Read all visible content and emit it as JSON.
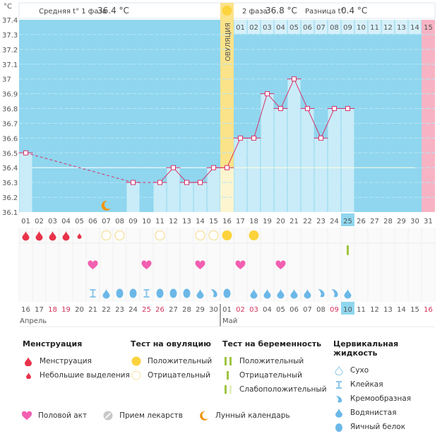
{
  "header": {
    "unit": "°C",
    "phase1_label": "Средняя t° 1 фаза",
    "phase1_value": "36.4 °C",
    "phase2_label": "2 фаза",
    "phase2_value": "36.8 °C",
    "diff_label": "Разница t°",
    "diff_value": "0.4 °C",
    "ovulation_label": "ОВУЛЯЦИЯ"
  },
  "chart_data": {
    "type": "line",
    "title": "",
    "ylabel": "°C",
    "ylim": [
      36.1,
      37.4
    ],
    "y_ticks": [
      "36.1",
      "36.2",
      "36.3",
      "36.4",
      "36.5",
      "36.6",
      "36.7",
      "36.8",
      "36.9",
      "37",
      "37.1",
      "37.2",
      "37.3",
      "37.4"
    ],
    "cycle_days": [
      "01",
      "02",
      "03",
      "04",
      "05",
      "06",
      "07",
      "08",
      "09",
      "10",
      "11",
      "12",
      "13",
      "14",
      "15",
      "16",
      "17",
      "18",
      "19",
      "20",
      "21",
      "22",
      "23",
      "24",
      "25",
      "26",
      "27",
      "28",
      "29",
      "30",
      "31"
    ],
    "post_ovulation_days": [
      "01",
      "02",
      "03",
      "04",
      "05",
      "06",
      "07",
      "08",
      "09",
      "10",
      "11",
      "12",
      "13",
      "14",
      "15"
    ],
    "calendar_dates": [
      "16",
      "17",
      "18",
      "19",
      "20",
      "21",
      "22",
      "23",
      "24",
      "25",
      "26",
      "27",
      "28",
      "29",
      "30",
      "01",
      "02",
      "03",
      "04",
      "05",
      "06",
      "07",
      "08",
      "09",
      "10",
      "11",
      "12",
      "13",
      "14",
      "15",
      "16"
    ],
    "weekend_dates_idx": [
      2,
      3,
      9,
      10,
      16,
      17,
      23,
      30
    ],
    "months": [
      "Апрель",
      "Май"
    ],
    "temperatures": [
      36.5,
      null,
      null,
      null,
      null,
      null,
      null,
      null,
      36.3,
      null,
      36.3,
      36.4,
      36.3,
      36.3,
      36.4,
      36.4,
      36.6,
      36.6,
      36.9,
      36.8,
      37.0,
      36.8,
      36.6,
      36.8,
      36.8,
      null,
      null,
      null,
      null,
      null,
      null
    ],
    "coverline": 36.4,
    "ovulation_day": 16,
    "today_day": 25,
    "next_period_day": 31,
    "marks": {
      "menstruation": {
        "1": "heavy",
        "2": "heavy",
        "3": "heavy",
        "4": "heavy",
        "5": "light"
      },
      "ovulation_test": {
        "7": "negative",
        "8": "negative",
        "11": "negative",
        "14": "negative",
        "15": "negative",
        "16": "positive",
        "18": "positive"
      },
      "pregnancy_test": {
        "25": "negative"
      },
      "intercourse": [
        6,
        10,
        14,
        17,
        20
      ],
      "lunar": [
        7
      ],
      "cervical": {
        "6": "sticky",
        "7": "watery",
        "8": "egg",
        "9": "egg",
        "10": "sticky",
        "11": "egg",
        "12": "egg",
        "13": "egg",
        "14": "watery",
        "15": "creamy",
        "16": "egg",
        "18": "watery",
        "19": "watery",
        "20": "watery",
        "21": "watery",
        "22": "watery",
        "23": "creamy",
        "24": "creamy",
        "25": "watery"
      }
    }
  },
  "colors": {
    "plot_bg": "#8fd6ee",
    "bar": "#c9ecf8",
    "ovulation": "#fbe38a",
    "period": "#f7b3c3",
    "line": "#d8326a",
    "blood": "#e8334a",
    "yellow": "#fcd33c",
    "heart": "#f25fb0",
    "drop": "#6bb8e8",
    "green": "#9ec440",
    "moon": "#f0950f"
  },
  "legend": {
    "menstruation": {
      "title": "Менструация",
      "items": [
        "Менструация",
        "Небольшие выделения"
      ]
    },
    "ovulation_test": {
      "title": "Тест на овуляцию",
      "items": [
        "Положительный",
        "Отрицательный"
      ]
    },
    "pregnancy_test": {
      "title": "Тест на беременность",
      "items": [
        "Положительный",
        "Отрицательный",
        "Слабоположительный"
      ]
    },
    "cervical": {
      "title": "Цервикальная жидкость",
      "items": [
        "Сухо",
        "Клейкая",
        "Кремообразная",
        "Водянистая",
        "Яичный белок"
      ]
    },
    "other": [
      "Половой акт",
      "Прием лекарств",
      "Лунный календарь"
    ]
  }
}
